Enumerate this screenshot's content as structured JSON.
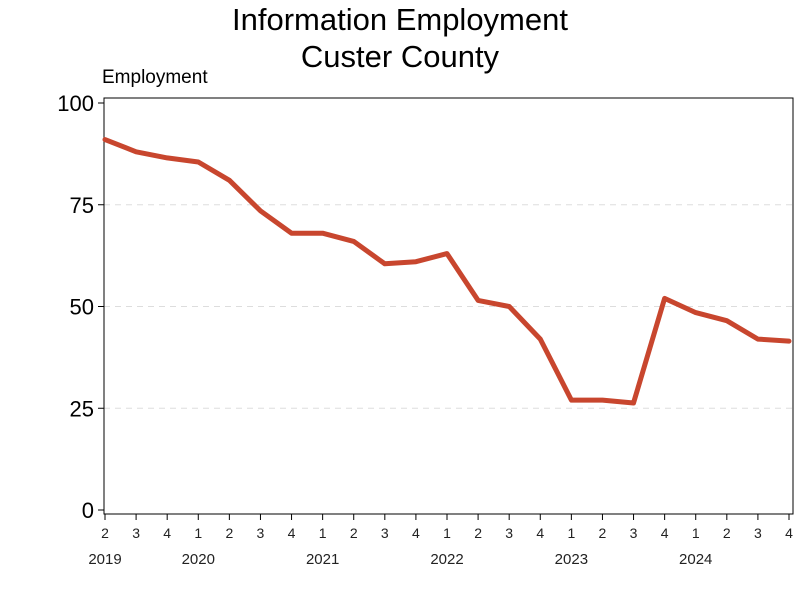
{
  "chart_data": {
    "type": "line",
    "title_line1": "Information Employment",
    "title_line2": "Custer County",
    "ylabel": "Employment",
    "xlabel": "",
    "ylim": [
      0,
      100
    ],
    "yticks": [
      0,
      25,
      50,
      75,
      100
    ],
    "grid": "horizontal dashed",
    "line_color": "#c8462e",
    "x": [
      "2019 Q2",
      "2019 Q3",
      "2019 Q4",
      "2020 Q1",
      "2020 Q2",
      "2020 Q3",
      "2020 Q4",
      "2021 Q1",
      "2021 Q2",
      "2021 Q3",
      "2021 Q4",
      "2022 Q1",
      "2022 Q2",
      "2022 Q3",
      "2022 Q4",
      "2023 Q1",
      "2023 Q2",
      "2023 Q3",
      "2023 Q4",
      "2024 Q1",
      "2024 Q2",
      "2024 Q3",
      "2024 Q4"
    ],
    "quarter_labels": [
      "2",
      "3",
      "4",
      "1",
      "2",
      "3",
      "4",
      "1",
      "2",
      "3",
      "4",
      "1",
      "2",
      "3",
      "4",
      "1",
      "2",
      "3",
      "4",
      "1",
      "2",
      "3",
      "4"
    ],
    "year_labels": [
      {
        "label": "2019",
        "index": 0
      },
      {
        "label": "2020",
        "index": 3
      },
      {
        "label": "2021",
        "index": 7
      },
      {
        "label": "2022",
        "index": 11
      },
      {
        "label": "2023",
        "index": 15
      },
      {
        "label": "2024",
        "index": 19
      }
    ],
    "series": [
      {
        "values": [
          91,
          88,
          86.5,
          85.5,
          81,
          73.5,
          68,
          68,
          66,
          60.5,
          61,
          63,
          51.5,
          50,
          42,
          27,
          27,
          26.3,
          52,
          48.5,
          46.5,
          42,
          41.5
        ]
      }
    ]
  }
}
